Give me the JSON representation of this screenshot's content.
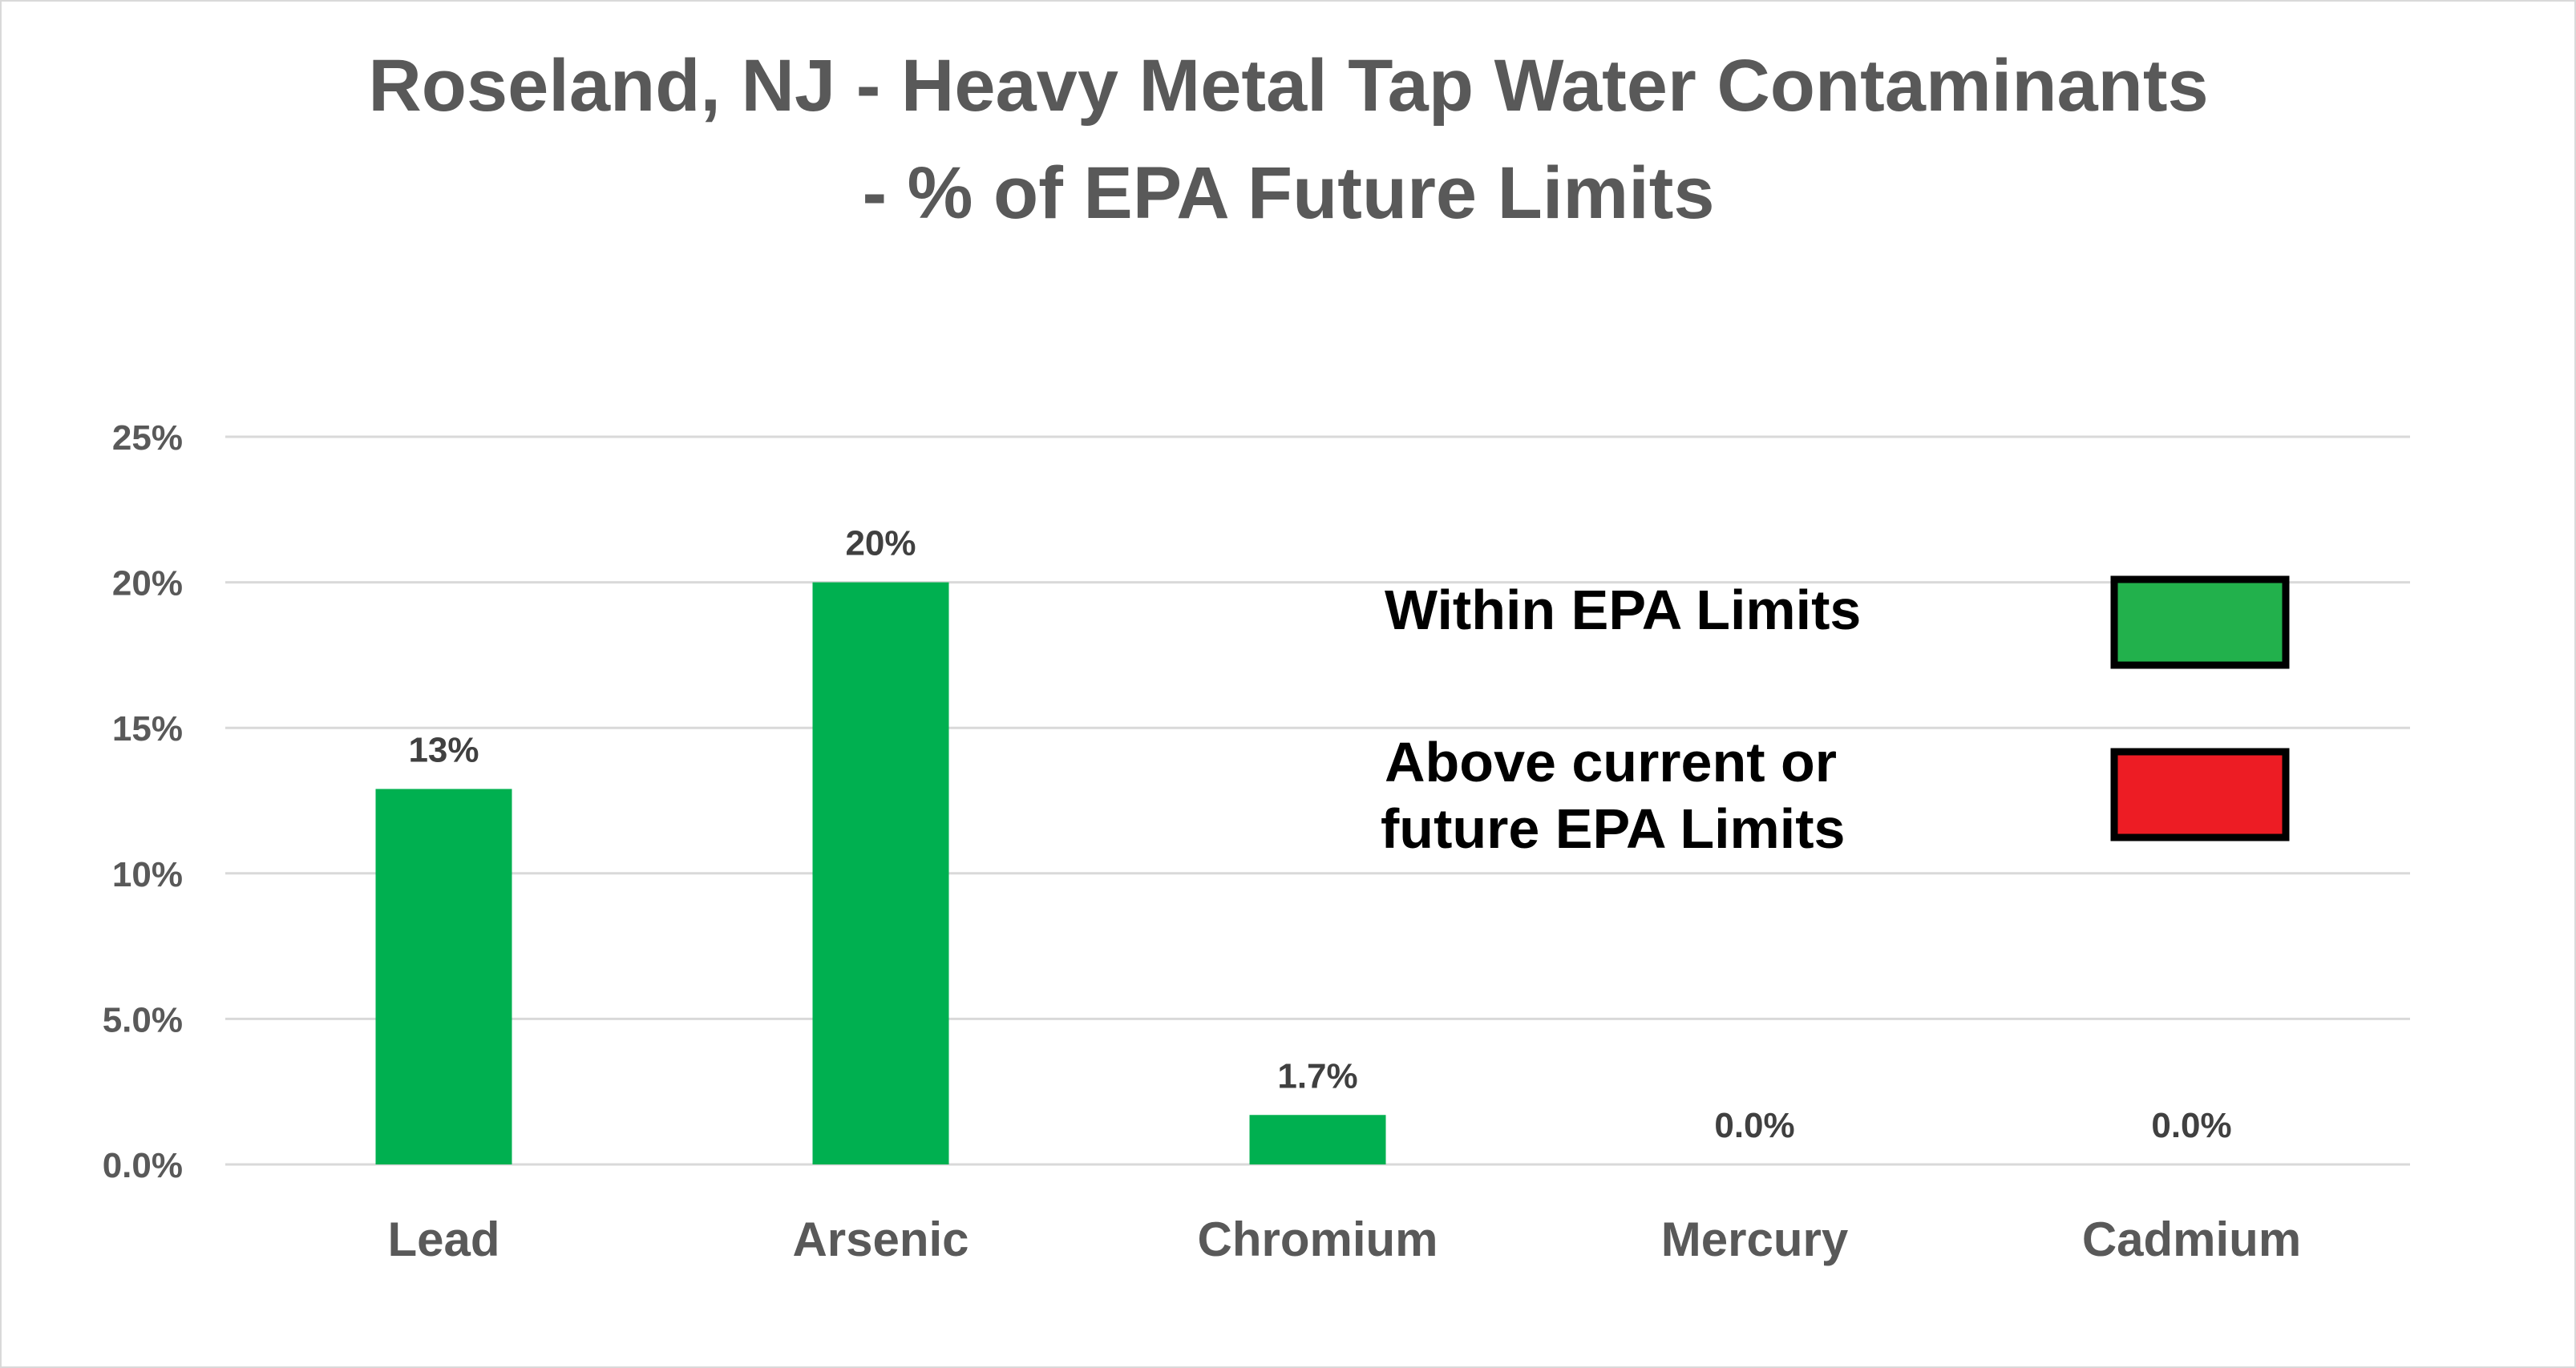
{
  "chart_data": {
    "type": "bar",
    "title": [
      "Roseland, NJ - Heavy Metal Tap Water Contaminants",
      "- % of EPA Future Limits"
    ],
    "xlabel": "",
    "ylabel": "",
    "categories": [
      "Lead",
      "Arsenic",
      "Chromium",
      "Mercury",
      "Cadmium"
    ],
    "values": [
      12.9,
      20,
      1.7,
      0,
      0
    ],
    "data_labels": [
      "13%",
      "20%",
      "1.7%",
      "0.0%",
      "0.0%"
    ],
    "ylim": [
      0,
      25
    ],
    "yticks": [
      0,
      5,
      10,
      15,
      20,
      25
    ],
    "ytick_labels": [
      "0.0%",
      "5.0%",
      "10%",
      "15%",
      "20%",
      "25%"
    ],
    "grid": true,
    "bar_color": "#00b050",
    "legend": {
      "placement": "right",
      "entries": [
        {
          "label": [
            "Within  EPA Limits"
          ],
          "color": "#22b14c"
        },
        {
          "label": [
            "Above current or",
            "future  EPA Limits"
          ],
          "color": "#ed1c24"
        }
      ]
    }
  }
}
